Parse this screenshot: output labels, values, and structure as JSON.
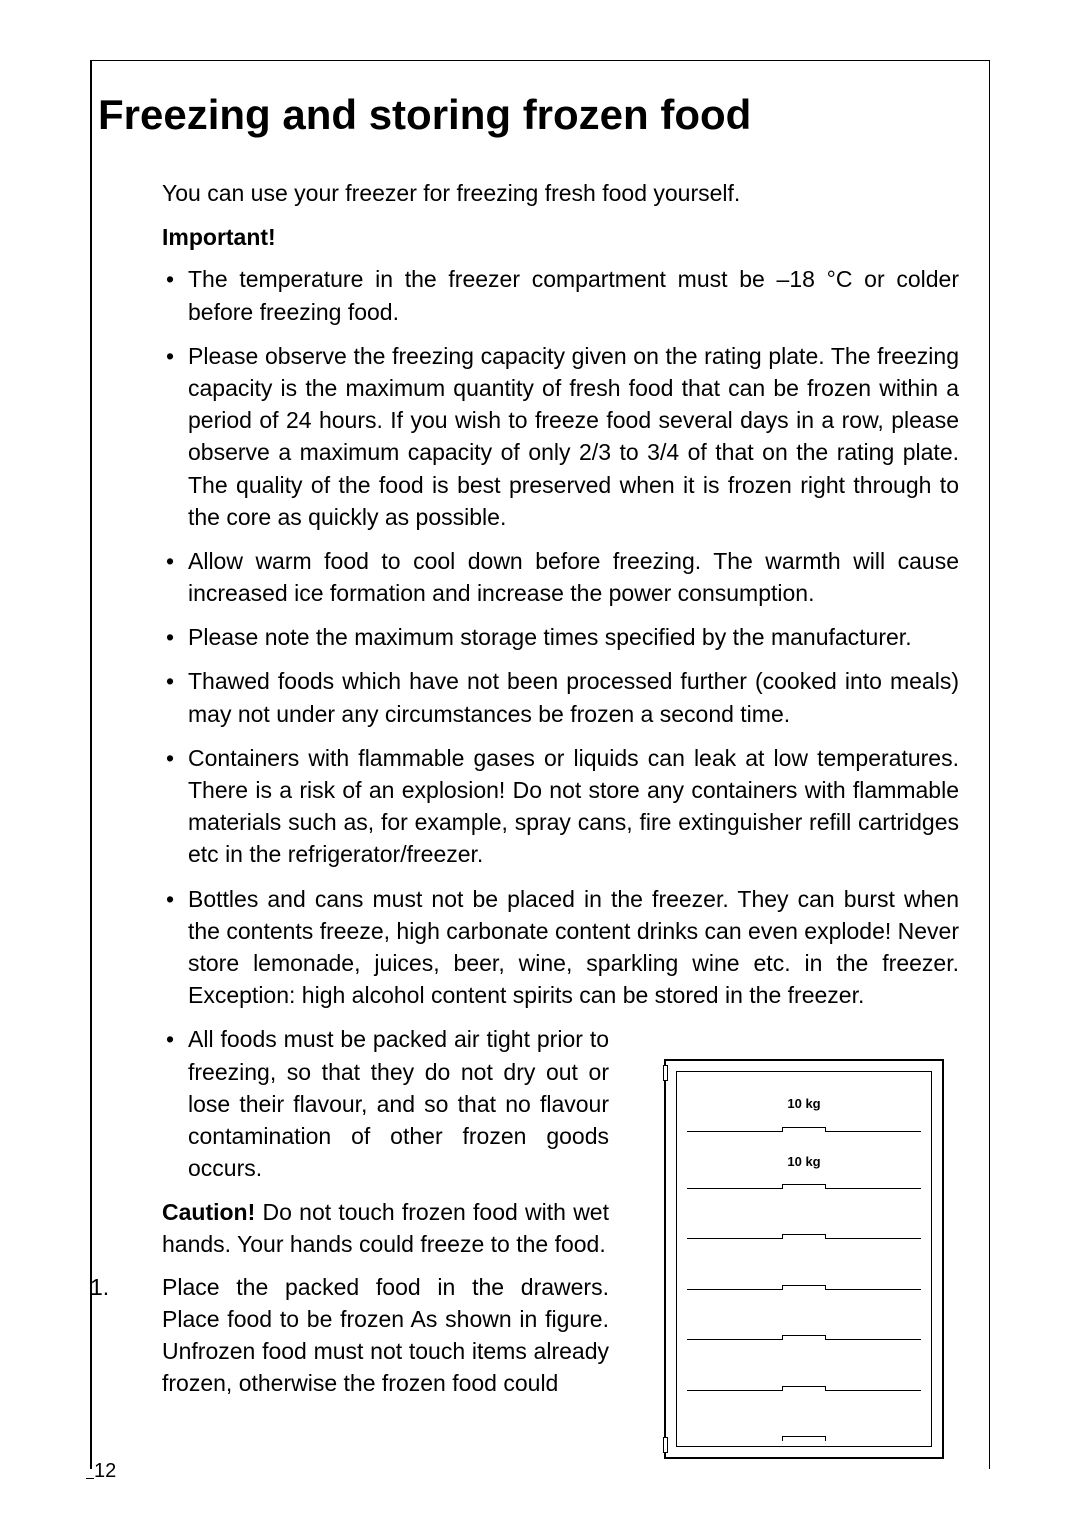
{
  "page": {
    "number": "12",
    "heading": "Freezing and storing frozen food",
    "intro": "You can use your freezer for freezing fresh food yourself.",
    "important_label": "Important!",
    "bullets_top": [
      "The temperature in the freezer compartment must be –18 °C or colder before freezing food.",
      "Please observe the freezing capacity given on the rating plate. The freezing capacity is the maximum quantity of fresh food that can be frozen within a period of 24 hours. If you wish to freeze food several days in a row, please observe a maximum capacity of only 2/3 to 3/4 of that on the rating plate. The quality of the food is best preserved when it is frozen right through to the core as quickly as possible.",
      "Allow warm food to cool down before freezing. The warmth will cause increased ice formation and increase the power consumption.",
      "Please note the maximum storage times specified by the manufacturer.",
      "Thawed foods which have not been processed further (cooked into meals) may not under any circumstances be frozen a second time.",
      "Containers with flammable gases or liquids can leak at low temperatures. There is a risk of an explosion! Do not store any containers with flammable materials such as, for example, spray cans, fire extinguisher refill cartridges etc in the refrigerator/freezer.",
      "Bottles and cans must not be placed in the freezer. They can burst when the contents freeze, high carbonate content drinks can even explode! Never store lemonade, juices, beer, wine, sparkling wine etc. in the freezer. Exception: high alcohol content spirits can be stored in the freezer."
    ],
    "bullet_split": "All foods must be packed air tight prior to freezing, so that they do not dry out or lose their flavour, and so that no flavour contamination of other frozen goods occurs.",
    "caution_label": "Caution!",
    "caution_text": " Do not touch frozen food with wet hands. Your hands could freeze to the food.",
    "step1_num": "1.",
    "step1_text": "Place the packed food in the drawers. Place food to be frozen As shown in figure. Unfrozen food must not touch items already frozen, otherwise the frozen food could"
  },
  "diagram": {
    "drawer_labels": [
      "10 kg",
      "10 kg"
    ]
  },
  "style": {
    "text_color": "#000000",
    "bg_color": "#ffffff",
    "heading_fontsize": 42,
    "body_fontsize": 23,
    "drawer_label_fontsize": 13
  }
}
